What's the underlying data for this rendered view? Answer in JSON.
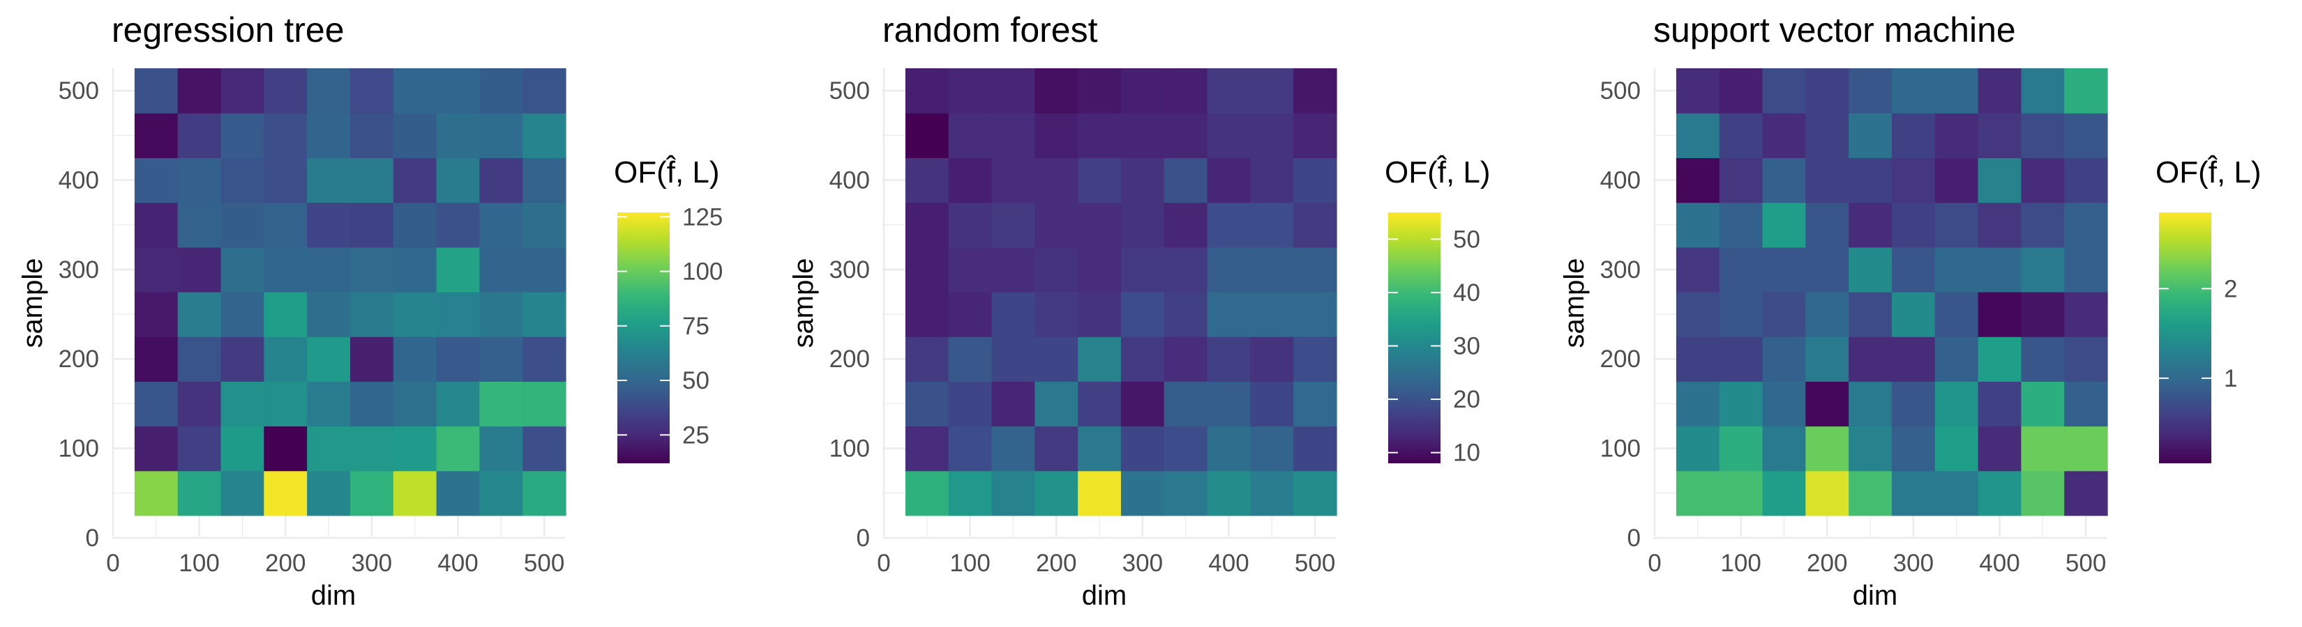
{
  "colors": {
    "viridis_stops": [
      "#440154",
      "#482878",
      "#3e4989",
      "#31688e",
      "#26828e",
      "#1f9e89",
      "#35b779",
      "#6ece58",
      "#b5de2b",
      "#fde725"
    ],
    "grid": "#ebebeb",
    "tick_text": "#4d4d4d"
  },
  "chart_data": [
    {
      "type": "heatmap",
      "title": "regression tree",
      "xlabel": "dim",
      "ylabel": "sample",
      "x": [
        50,
        100,
        150,
        200,
        250,
        300,
        350,
        400,
        450,
        500
      ],
      "y": [
        50,
        100,
        150,
        200,
        250,
        300,
        350,
        400,
        450,
        500
      ],
      "xlim": [
        0,
        525
      ],
      "ylim": [
        0,
        525
      ],
      "xticks": [
        "0",
        "100",
        "200",
        "300",
        "400",
        "500"
      ],
      "yticks": [
        "0",
        "100",
        "200",
        "300",
        "400",
        "500"
      ],
      "z": [
        [
          106,
          80,
          64,
          125,
          65,
          86,
          116,
          56,
          66,
          82
        ],
        [
          22,
          34,
          75,
          11,
          73,
          73,
          74,
          90,
          60,
          40
        ],
        [
          43,
          29,
          70,
          70,
          61,
          50,
          55,
          66,
          88,
          87
        ],
        [
          16,
          42,
          32,
          64,
          74,
          22,
          50,
          44,
          47,
          40
        ],
        [
          20,
          61,
          49,
          76,
          54,
          59,
          64,
          63,
          58,
          64
        ],
        [
          25,
          24,
          54,
          50,
          50,
          52,
          51,
          78,
          49,
          49
        ],
        [
          23,
          48,
          46,
          48,
          36,
          35,
          46,
          41,
          50,
          54
        ],
        [
          45,
          47,
          42,
          40,
          60,
          60,
          32,
          60,
          32,
          48
        ],
        [
          15,
          33,
          45,
          40,
          49,
          41,
          46,
          54,
          53,
          64
        ],
        [
          41,
          18,
          25,
          34,
          48,
          38,
          50,
          50,
          46,
          42
        ]
      ],
      "legend": {
        "title": "OF(f̂, L)",
        "min": 12,
        "max": 127,
        "ticks": [
          25,
          50,
          75,
          100,
          125
        ],
        "tick_labels": [
          "25",
          "50",
          "75",
          "100",
          "125"
        ]
      },
      "grid": true,
      "legend_position": "right"
    },
    {
      "type": "heatmap",
      "title": "random forest",
      "xlabel": "dim",
      "ylabel": "sample",
      "x": [
        50,
        100,
        150,
        200,
        250,
        300,
        350,
        400,
        450,
        500
      ],
      "y": [
        50,
        100,
        150,
        200,
        250,
        300,
        350,
        400,
        450,
        500
      ],
      "xlim": [
        0,
        525
      ],
      "ylim": [
        0,
        525
      ],
      "xticks": [
        "0",
        "100",
        "200",
        "300",
        "400",
        "500"
      ],
      "yticks": [
        "0",
        "100",
        "200",
        "300",
        "400",
        "500"
      ],
      "z": [
        [
          38,
          33,
          29,
          32,
          54,
          26,
          27,
          31,
          28,
          31
        ],
        [
          14,
          19,
          23,
          16,
          27,
          18,
          19,
          25,
          23,
          18
        ],
        [
          20,
          18,
          13,
          27,
          17,
          11,
          22,
          22,
          18,
          24
        ],
        [
          16,
          21,
          18,
          18,
          29,
          16,
          14,
          17,
          15,
          19
        ],
        [
          12,
          13,
          18,
          16,
          15,
          19,
          17,
          24,
          24,
          24
        ],
        [
          12,
          14,
          14,
          15,
          14,
          16,
          16,
          22,
          22,
          22
        ],
        [
          12,
          15,
          16,
          14,
          14,
          15,
          13,
          19,
          19,
          16
        ],
        [
          15,
          12,
          14,
          14,
          17,
          15,
          20,
          13,
          15,
          18
        ],
        [
          7,
          14,
          14,
          12,
          13,
          13,
          13,
          15,
          15,
          13
        ],
        [
          12,
          13,
          13,
          10,
          11,
          12,
          12,
          16,
          16,
          11
        ]
      ],
      "legend": {
        "title": "OF(f̂, L)",
        "min": 8,
        "max": 55,
        "ticks": [
          10,
          20,
          30,
          40,
          50
        ],
        "tick_labels": [
          "10",
          "20",
          "30",
          "40",
          "50"
        ]
      },
      "grid": true,
      "legend_position": "right"
    },
    {
      "type": "heatmap",
      "title": "support vector machine",
      "xlabel": "dim",
      "ylabel": "sample",
      "x": [
        50,
        100,
        150,
        200,
        250,
        300,
        350,
        400,
        450,
        500
      ],
      "y": [
        50,
        100,
        150,
        200,
        250,
        300,
        350,
        400,
        450,
        500
      ],
      "xlim": [
        0,
        525
      ],
      "ylim": [
        0,
        525
      ],
      "xticks": [
        "0",
        "100",
        "200",
        "300",
        "400",
        "500"
      ],
      "yticks": [
        "0",
        "100",
        "200",
        "300",
        "400",
        "500"
      ],
      "z": [
        [
          2.0,
          2.0,
          1.6,
          2.7,
          2.0,
          1.2,
          1.2,
          1.5,
          2.1,
          0.4
        ],
        [
          1.4,
          1.8,
          1.2,
          2.2,
          1.3,
          0.9,
          1.6,
          0.4,
          2.2,
          2.2
        ],
        [
          1.1,
          1.4,
          1.0,
          0.1,
          1.2,
          0.8,
          1.5,
          0.6,
          1.8,
          0.9
        ],
        [
          0.6,
          0.6,
          0.9,
          1.2,
          0.4,
          0.4,
          0.9,
          1.6,
          0.8,
          0.7
        ],
        [
          0.7,
          0.8,
          0.7,
          1.0,
          0.7,
          1.4,
          0.8,
          0.1,
          0.2,
          0.4
        ],
        [
          0.5,
          0.8,
          0.8,
          0.8,
          1.4,
          0.8,
          1.0,
          1.0,
          1.2,
          0.9
        ],
        [
          1.1,
          0.9,
          1.6,
          0.8,
          0.4,
          0.6,
          0.7,
          0.5,
          0.7,
          0.9
        ],
        [
          0.1,
          0.5,
          0.9,
          0.6,
          0.6,
          0.5,
          0.3,
          1.3,
          0.4,
          0.6
        ],
        [
          1.2,
          0.6,
          0.4,
          0.6,
          1.1,
          0.6,
          0.4,
          0.5,
          0.7,
          0.8
        ],
        [
          0.4,
          0.3,
          0.7,
          0.6,
          0.8,
          1.0,
          1.0,
          0.4,
          1.2,
          1.8
        ]
      ],
      "legend": {
        "title": "OF(f̂, L)",
        "min": 0.05,
        "max": 2.85,
        "ticks": [
          1,
          2
        ],
        "tick_labels": [
          "1",
          "2"
        ]
      },
      "grid": true,
      "legend_position": "right"
    }
  ]
}
